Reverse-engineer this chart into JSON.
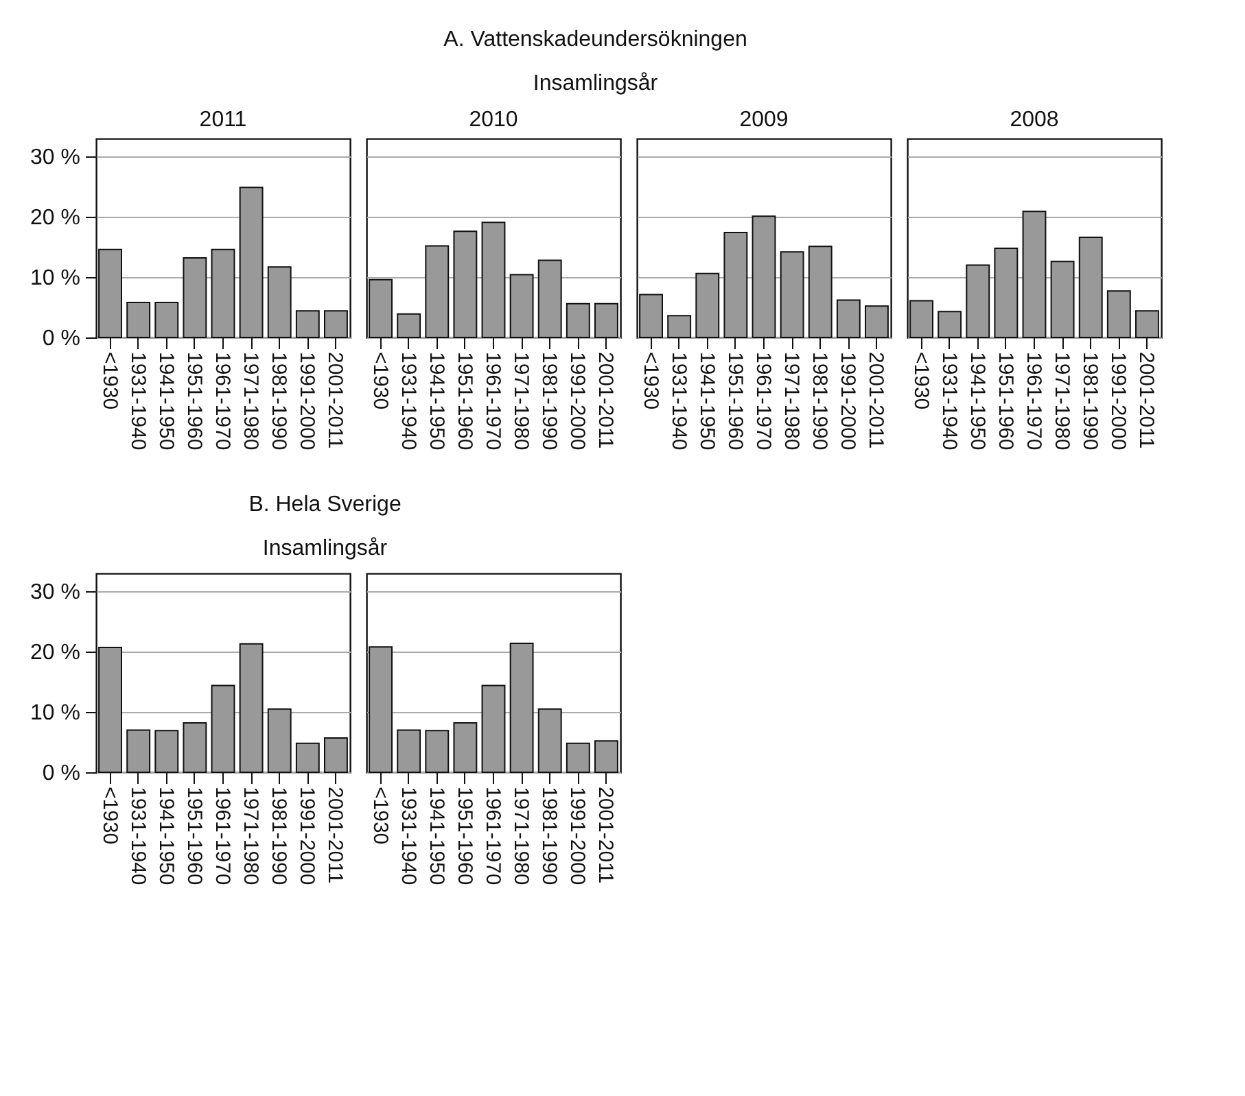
{
  "chart_data": [
    {
      "type": "bar",
      "title": "2011",
      "annotations": [
        "A. Vattenskadeundersökningen",
        "Insamlingsår"
      ],
      "categories": [
        "<1930",
        "1931-1940",
        "1941-1950",
        "1951-1960",
        "1961-1970",
        "1971-1980",
        "1981-1990",
        "1991-2000",
        "2001-2011"
      ],
      "values": [
        14.6,
        5.8,
        5.8,
        13.2,
        14.6,
        24.9,
        11.7,
        4.4,
        4.4
      ],
      "color": "#999999",
      "ylim": [
        0,
        33
      ],
      "yticks": [
        {
          "value": 0,
          "label": "0 %"
        },
        {
          "value": 10,
          "label": "10 %"
        },
        {
          "value": 20,
          "label": "20 %"
        },
        {
          "value": 30,
          "label": "30 %"
        }
      ],
      "grid": "y"
    },
    {
      "type": "bar",
      "title": "2010",
      "categories": [
        "<1930",
        "1931-1940",
        "1941-1950",
        "1951-1960",
        "1961-1970",
        "1971-1980",
        "1981-1990",
        "1991-2000",
        "2001-2011"
      ],
      "values": [
        9.6,
        3.9,
        15.2,
        17.6,
        19.1,
        10.4,
        12.8,
        5.6,
        5.6
      ],
      "color": "#999999",
      "ylim": [
        0,
        33
      ],
      "yticks": [
        0,
        10,
        20,
        30
      ],
      "grid": "y",
      "tick_labels": "x"
    },
    {
      "type": "bar",
      "title": "2009",
      "categories": [
        "<1930",
        "1931-1940",
        "1941-1950",
        "1951-1960",
        "1961-1970",
        "1971-1980",
        "1981-1990",
        "1991-2000",
        "2001-2011"
      ],
      "values": [
        7.1,
        3.6,
        10.6,
        17.4,
        20.1,
        14.2,
        15.1,
        6.2,
        5.2
      ],
      "color": "#999999",
      "ylim": [
        0,
        33
      ],
      "yticks": [
        0,
        10,
        20,
        30
      ],
      "grid": "y",
      "tick_labels": "x"
    },
    {
      "type": "bar",
      "title": "2008",
      "categories": [
        "<1930",
        "1931-1940",
        "1941-1950",
        "1951-1960",
        "1961-1970",
        "1971-1980",
        "1981-1990",
        "1991-2000",
        "2001-2011"
      ],
      "values": [
        6.1,
        4.3,
        12.0,
        14.8,
        20.9,
        12.6,
        16.6,
        7.7,
        4.4
      ],
      "color": "#999999",
      "ylim": [
        0,
        33
      ],
      "yticks": [
        0,
        10,
        20,
        30
      ],
      "grid": "y",
      "tick_labels": "x"
    },
    {
      "type": "bar",
      "annotations": [
        "B. Hela Sverige",
        "Insamlingsår"
      ],
      "categories": [
        "<1930",
        "1931-1940",
        "1941-1950",
        "1951-1960",
        "1961-1970",
        "1971-1980",
        "1981-1990",
        "1991-2000",
        "2001-2011"
      ],
      "values": [
        20.7,
        7.0,
        6.9,
        8.2,
        14.4,
        21.3,
        10.5,
        4.8,
        5.7
      ],
      "color": "#999999",
      "ylim": [
        0,
        33
      ],
      "yticks": [
        {
          "value": 0,
          "label": "0 %"
        },
        {
          "value": 10,
          "label": "10 %"
        },
        {
          "value": 20,
          "label": "20 %"
        },
        {
          "value": 30,
          "label": "30 %"
        }
      ],
      "grid": "y"
    },
    {
      "type": "bar",
      "categories": [
        "<1930",
        "1931-1940",
        "1941-1950",
        "1951-1960",
        "1961-1970",
        "1971-1980",
        "1981-1990",
        "1991-2000",
        "2001-2011"
      ],
      "values": [
        20.8,
        7.0,
        6.9,
        8.2,
        14.4,
        21.4,
        10.5,
        4.8,
        5.2
      ],
      "color": "#999999",
      "ylim": [
        0,
        33
      ],
      "yticks": [
        0,
        10,
        20,
        30
      ],
      "grid": "y",
      "tick_labels": "x"
    }
  ]
}
